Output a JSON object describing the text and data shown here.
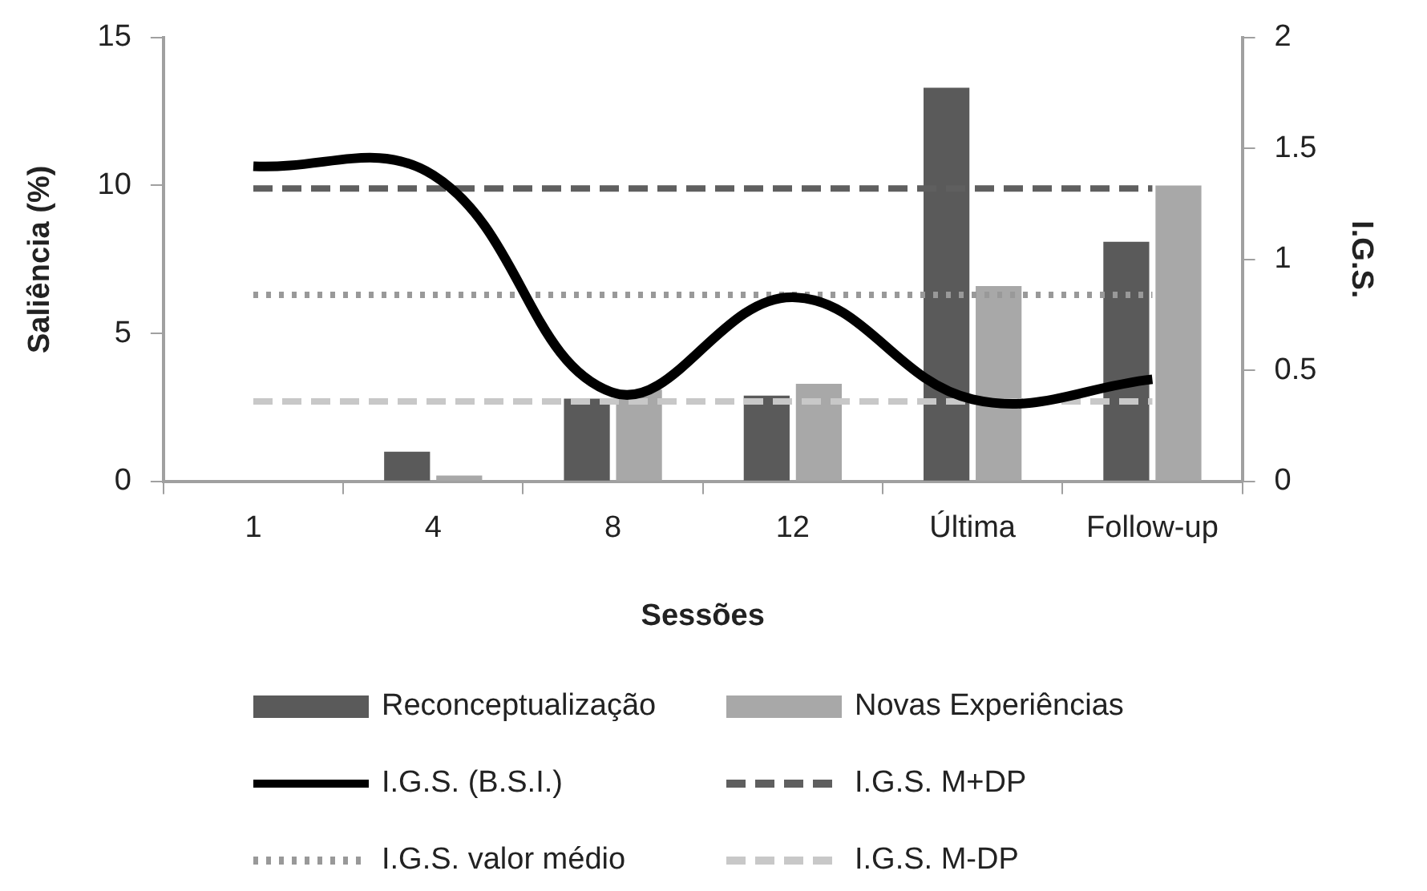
{
  "chart_data": {
    "type": "bar",
    "categories": [
      "1",
      "4",
      "8",
      "12",
      "Última",
      "Follow-up"
    ],
    "xlabel": "Sessões",
    "ylabel": "Saliência (%)",
    "y2label": "I.G.S.",
    "ylim": [
      0,
      15
    ],
    "yticks": [
      0,
      5,
      10,
      15
    ],
    "y2lim": [
      0,
      2
    ],
    "y2ticks": [
      0,
      0.5,
      1,
      1.5,
      2
    ],
    "grid": false,
    "legend": "bottom",
    "series": [
      {
        "name": "Reconceptualização",
        "color": "#5a5a5a",
        "values": [
          0,
          1.0,
          2.8,
          2.9,
          13.3,
          8.1
        ]
      },
      {
        "name": "Novas Experiências",
        "color": "#a8a8a8",
        "values": [
          0,
          0.2,
          3.1,
          3.3,
          6.6,
          10.0
        ]
      },
      {
        "name": "I.G.S. (B.S.I.)",
        "type": "line",
        "axis": "y2",
        "color": "#000000",
        "line_style": "solid",
        "values": [
          1.42,
          1.38,
          0.4,
          0.83,
          0.37,
          0.46
        ]
      },
      {
        "name": "I.G.S. M+DP",
        "type": "line",
        "axis": "y2",
        "color": "#5f5f5f",
        "line_style": "dashed",
        "values": [
          1.32,
          1.32,
          1.32,
          1.32,
          1.32,
          1.32
        ]
      },
      {
        "name": "I.G.S. valor médio",
        "type": "line",
        "axis": "y2",
        "color": "#999999",
        "line_style": "dotted",
        "values": [
          0.84,
          0.84,
          0.84,
          0.84,
          0.84,
          0.84
        ]
      },
      {
        "name": "I.G.S. M-DP",
        "type": "line",
        "axis": "y2",
        "color": "#c8c8c8",
        "line_style": "dashed",
        "values": [
          0.36,
          0.36,
          0.36,
          0.36,
          0.36,
          0.36
        ]
      }
    ]
  }
}
